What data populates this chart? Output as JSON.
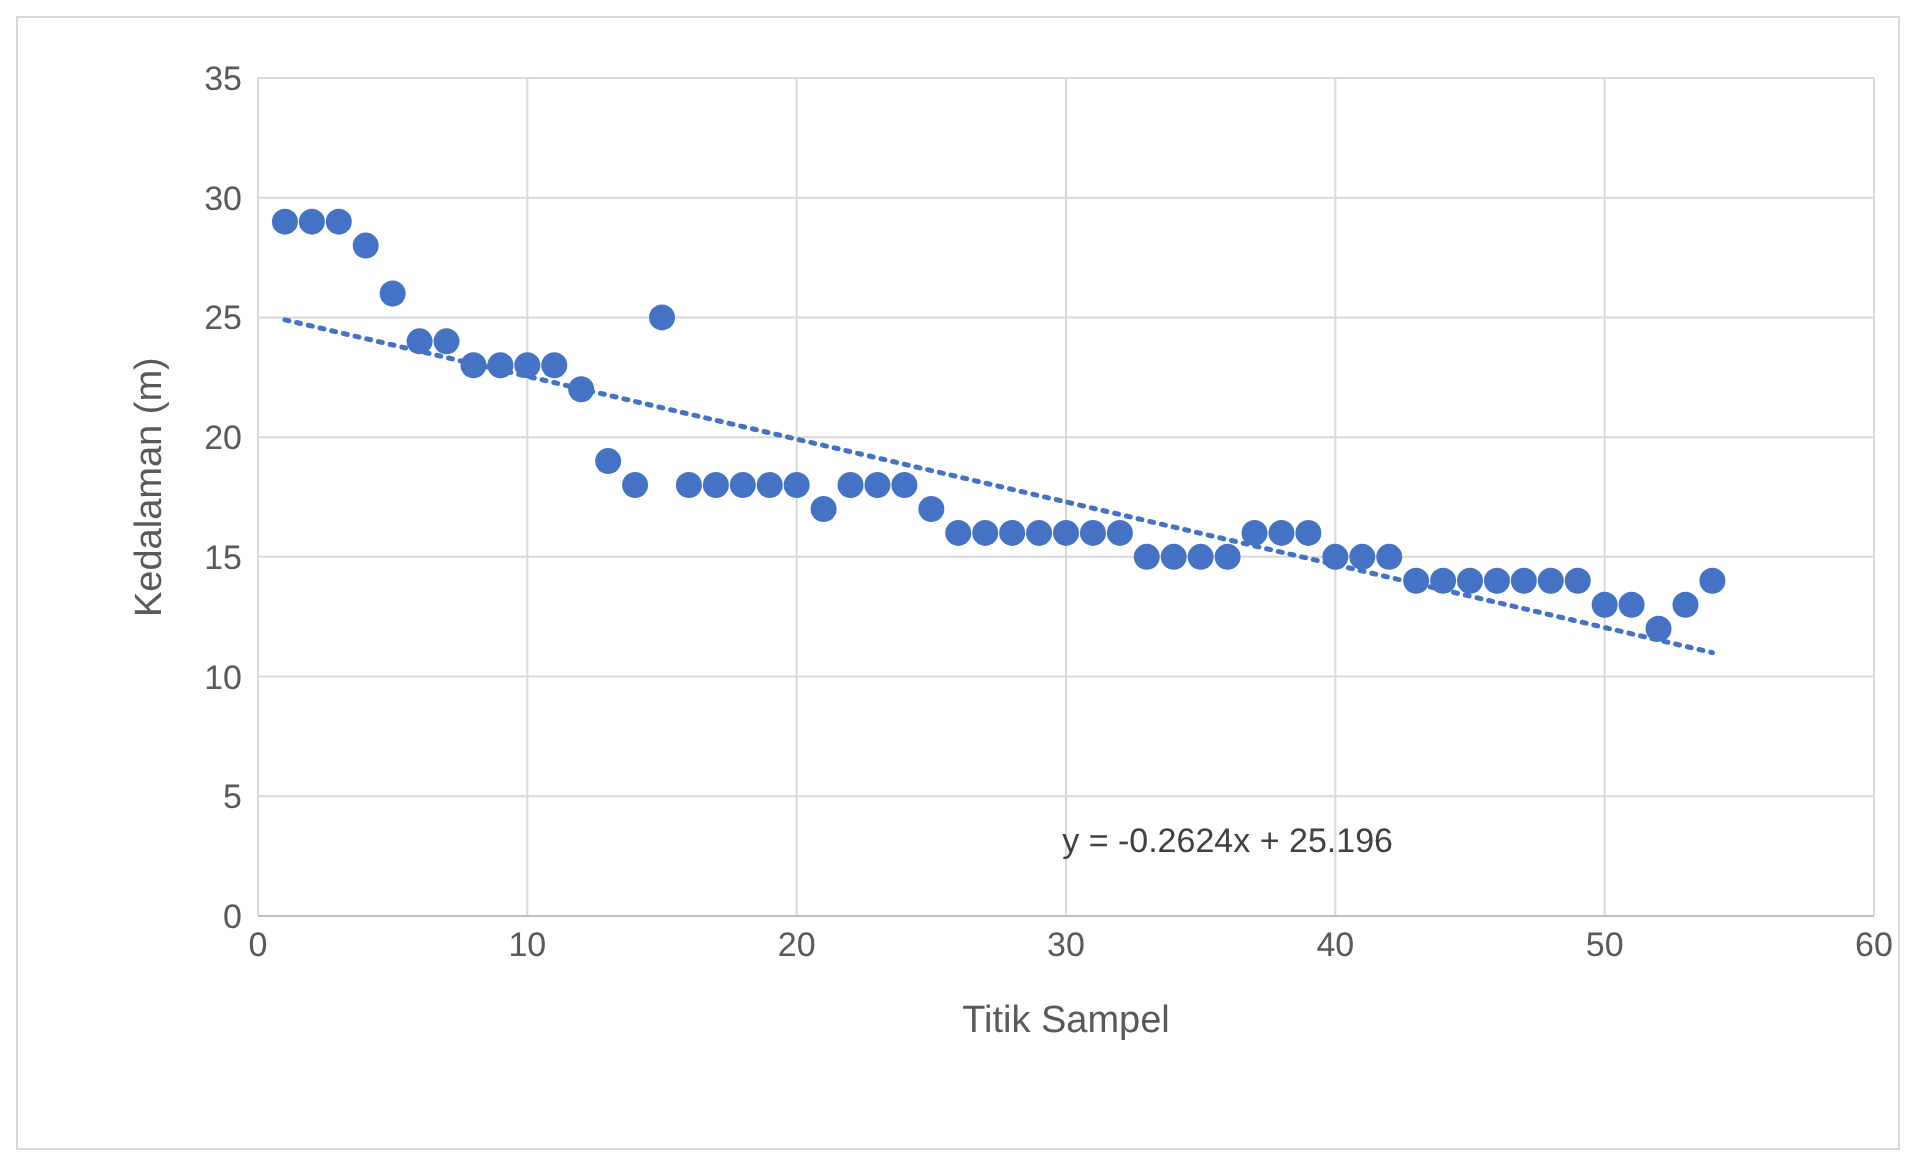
{
  "chart_data": {
    "type": "scatter",
    "xlabel": "Titik Sampel",
    "ylabel": "Kedalaman (m)",
    "x": [
      1,
      2,
      3,
      4,
      5,
      6,
      7,
      8,
      9,
      10,
      11,
      12,
      13,
      14,
      15,
      16,
      17,
      18,
      19,
      20,
      21,
      22,
      23,
      24,
      25,
      26,
      27,
      28,
      29,
      30,
      31,
      32,
      33,
      34,
      35,
      36,
      37,
      38,
      39,
      40,
      41,
      42,
      43,
      44,
      45,
      46,
      47,
      48,
      49,
      50,
      51,
      52,
      53,
      54
    ],
    "series": [
      {
        "color": "#4472c4",
        "marker": "circle",
        "values": [
          29,
          29,
          29,
          28,
          26,
          24,
          24,
          23,
          23,
          23,
          23,
          22,
          19,
          18,
          25,
          18,
          18,
          18,
          18,
          18,
          17,
          18,
          18,
          18,
          17,
          16,
          16,
          16,
          16,
          16,
          16,
          16,
          15,
          15,
          15,
          15,
          16,
          16,
          16,
          15,
          15,
          15,
          14,
          14,
          14,
          14,
          14,
          14,
          14,
          13,
          13,
          12,
          13,
          14
        ]
      },
      {
        "type": "line",
        "color": "#4472c4",
        "line_style": "dotted",
        "marker": "none",
        "x": [
          1,
          54
        ],
        "values": [
          24.9,
          11.0
        ]
      }
    ],
    "annotations": [
      "y = -0.2624x + 25.196"
    ],
    "xlim": [
      0,
      60
    ],
    "xticks": [
      0,
      10,
      20,
      30,
      40,
      50,
      60
    ],
    "ylim": [
      0,
      35
    ],
    "yticks": [
      0,
      5,
      10,
      15,
      20,
      25,
      30,
      35
    ],
    "grid": true,
    "legend": false
  }
}
